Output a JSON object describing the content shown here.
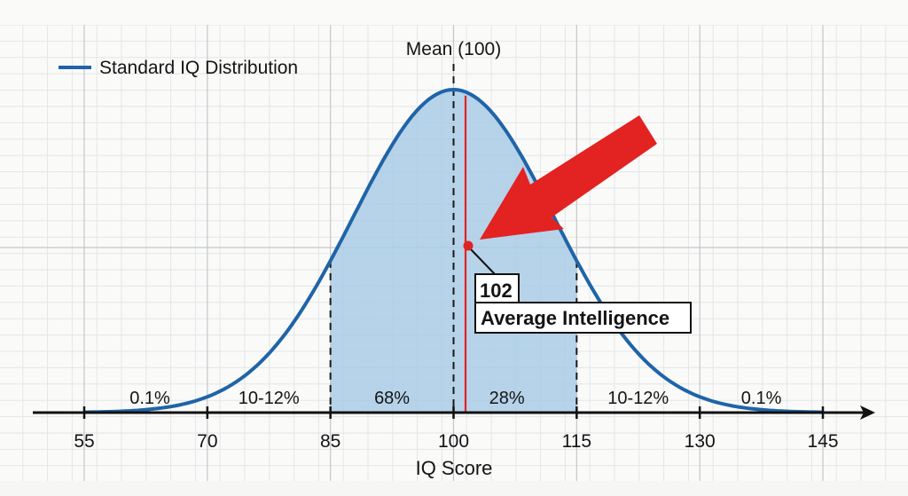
{
  "chart_data": {
    "type": "line",
    "title": "",
    "xlabel": "IQ Score",
    "ylabel": "",
    "xlim": [
      55,
      145
    ],
    "x_ticks": [
      55,
      70,
      85,
      100,
      115,
      130,
      145
    ],
    "grid": true,
    "legend_position": "top-left",
    "series": [
      {
        "name": "Standard IQ Distribution",
        "kind": "normal-curve",
        "mean": 100,
        "sd": 15,
        "color": "#1f64a8"
      }
    ],
    "shaded_region": {
      "from": 85,
      "to": 115,
      "color": "#a9cbe6"
    },
    "dashed_markers": [
      85,
      100,
      115
    ],
    "mean_marker": {
      "x": 100,
      "label": "Mean (100)"
    },
    "highlight": {
      "x": 102,
      "value_label": "102",
      "category_label": "Average Intelligence",
      "line_color": "#e02424",
      "arrow_color": "#e32222"
    },
    "region_labels": [
      {
        "x": 63,
        "text": "0.1%"
      },
      {
        "x": 77.5,
        "text": "10-12%"
      },
      {
        "x": 92.5,
        "text": "68%"
      },
      {
        "x": 106.5,
        "text": "28%"
      },
      {
        "x": 122.5,
        "text": "10-12%"
      },
      {
        "x": 137.5,
        "text": "0.1%"
      }
    ]
  },
  "legend": {
    "label": "Standard IQ Distribution"
  },
  "axis": {
    "xlabel": "IQ Score"
  },
  "annotations": {
    "mean_label": "Mean (100)",
    "value_label": "102",
    "category_label": "Average Intelligence"
  }
}
